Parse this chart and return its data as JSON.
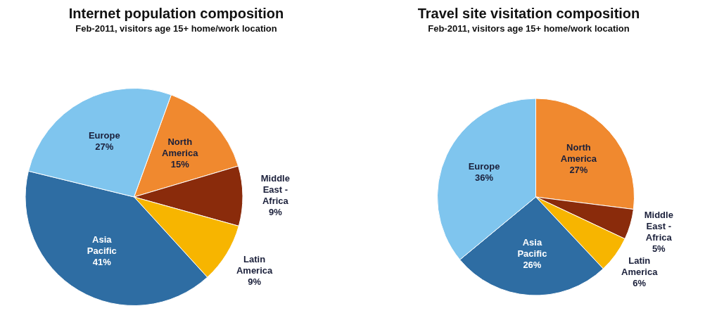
{
  "chart_data": [
    {
      "type": "pie",
      "title": "Internet population composition",
      "subtitle": "Feb-2011, visitors age 15+ home/work location",
      "categories": [
        "North America",
        "Middle East - Africa",
        "Latin America",
        "Asia Pacific",
        "Europe"
      ],
      "values": [
        15,
        9,
        9,
        41,
        27
      ],
      "colors": [
        "#f0892f",
        "#8a2b0b",
        "#f7b500",
        "#2e6da3",
        "#7fc5ee"
      ],
      "value_labels": [
        "15%",
        "9%",
        "9%",
        "41%",
        "27%"
      ]
    },
    {
      "type": "pie",
      "title": "Travel site visitation composition",
      "subtitle": "Feb-2011, visitors age 15+ home/work location",
      "categories": [
        "North America",
        "Middle East - Africa",
        "Latin America",
        "Asia Pacific",
        "Europe"
      ],
      "values": [
        27,
        5,
        6,
        26,
        36
      ],
      "colors": [
        "#f0892f",
        "#8a2b0b",
        "#f7b500",
        "#2e6da3",
        "#7fc5ee"
      ],
      "value_labels": [
        "27%",
        "5%",
        "6%",
        "26%",
        "36%"
      ]
    }
  ]
}
